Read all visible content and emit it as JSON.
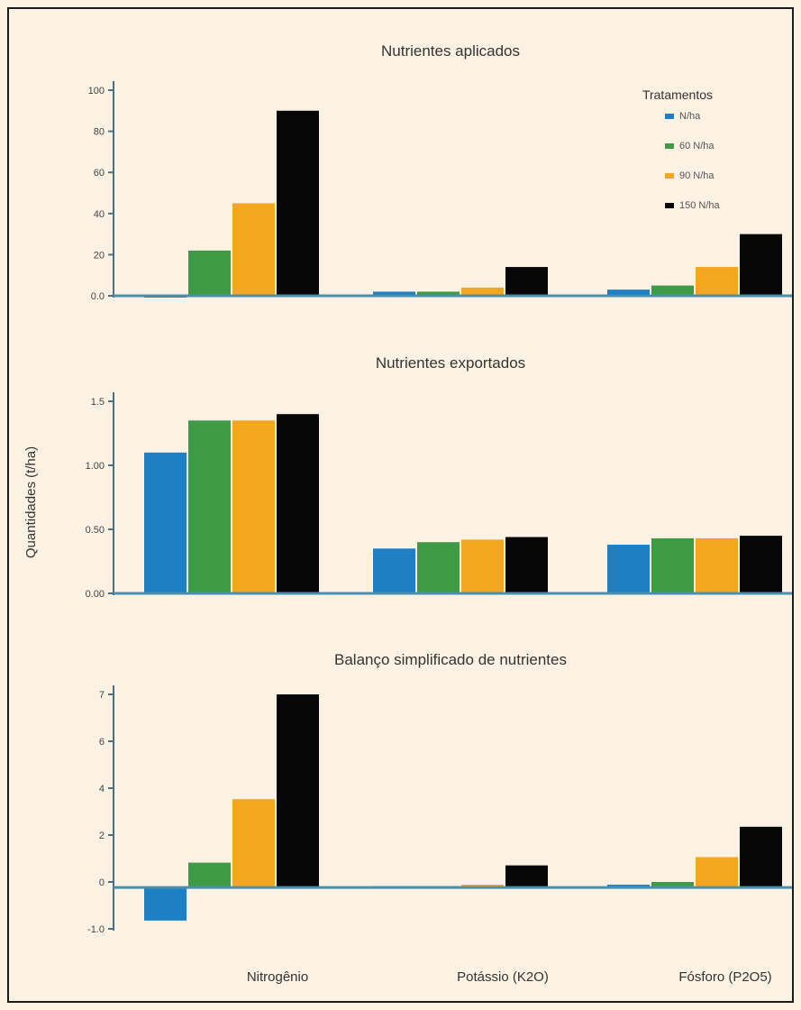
{
  "chart_data": {
    "type": "bar",
    "shared_y_label": "Quantidades (t/ha)",
    "categories": [
      "Nitrogênio",
      "Potássio (K2O)",
      "Fósforo (P2O5)"
    ],
    "series": [
      {
        "name": "N/ha",
        "color": "#1f7fc4"
      },
      {
        "name": "60 N/ha",
        "color": "#3f9a45"
      },
      {
        "name": "90 N/ha",
        "color": "#f2a71f"
      },
      {
        "name": "150 N/ha",
        "color": "#070707"
      }
    ],
    "legend": {
      "title": "Tratamentos",
      "placement": "top-right"
    },
    "grid": false,
    "panels": [
      {
        "title": "Nutrientes aplicados",
        "ylim": [
          0,
          100
        ],
        "yticks": [
          "100",
          "80",
          "60",
          "40",
          "20",
          "0.0"
        ],
        "values": [
          [
            0,
            22,
            45,
            90
          ],
          [
            2,
            2,
            4,
            14
          ],
          [
            3,
            5,
            14,
            30
          ]
        ]
      },
      {
        "title": "Nutrientes exportados",
        "ylim": [
          0,
          1.5
        ],
        "yticks": [
          "1.5",
          "1.00",
          "0.50",
          "0.00"
        ],
        "values": [
          [
            1.1,
            1.35,
            1.35,
            1.4
          ],
          [
            0.35,
            0.4,
            0.42,
            0.44
          ],
          [
            0.38,
            0.43,
            0.43,
            0.45
          ]
        ]
      },
      {
        "title": "Balanço simplificado de nutrientes",
        "ylim": [
          -1.5,
          7
        ],
        "yticks": [
          "7",
          "6",
          "4",
          "2",
          "0",
          "-1.0"
        ],
        "values": [
          [
            -1.2,
            0.9,
            3.2,
            7.0
          ],
          [
            0.05,
            0.05,
            0.1,
            0.8
          ],
          [
            0.1,
            0.2,
            1.1,
            2.2
          ]
        ]
      }
    ]
  }
}
